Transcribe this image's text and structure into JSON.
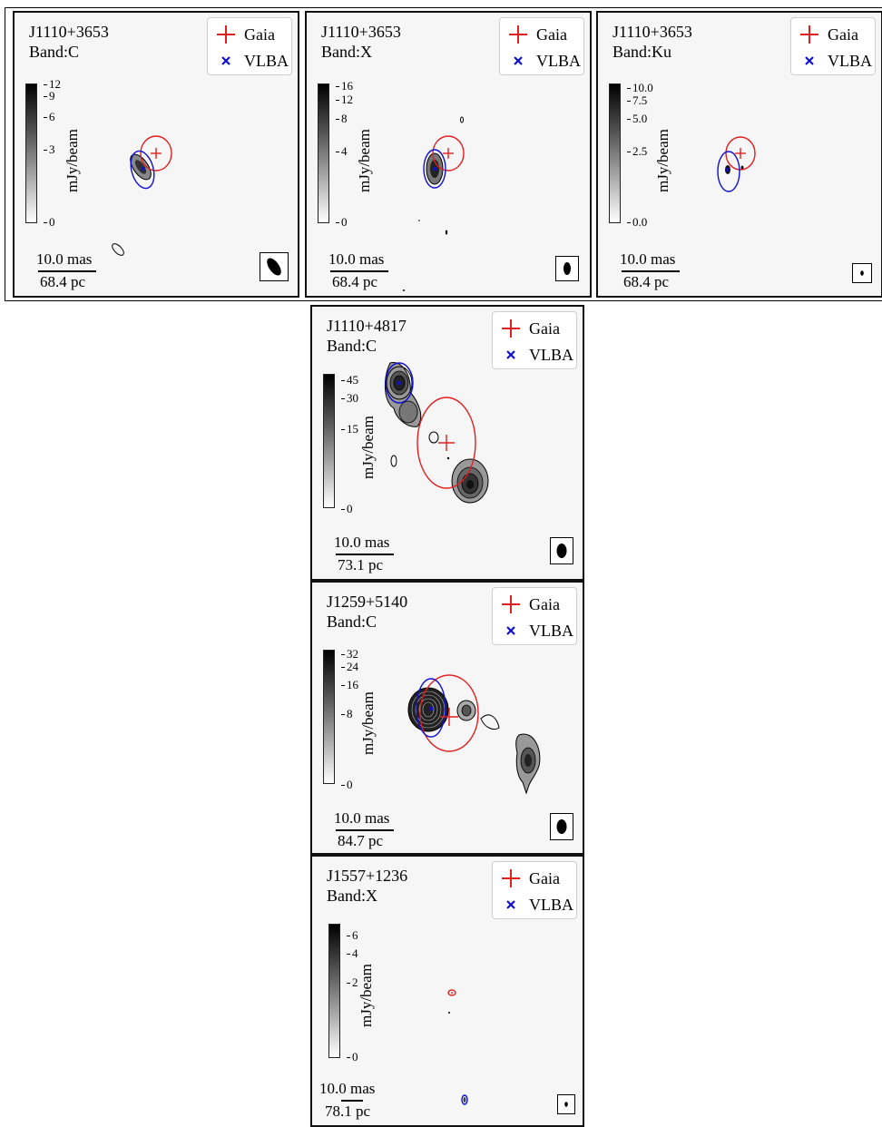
{
  "legend": {
    "gaia_label": "Gaia",
    "vlba_label": "VLBA",
    "gaia_color": "#e02020",
    "vlba_color": "#1010d0"
  },
  "colorbar_unit": "mJy/beam",
  "scalebar_mas": "10.0 mas",
  "panels": [
    {
      "source": "J1110+3653",
      "band": "Band:C",
      "ticks": [
        "12",
        "9",
        "6",
        "3",
        "0"
      ],
      "scale_pc": "68.4 pc"
    },
    {
      "source": "J1110+3653",
      "band": "Band:X",
      "ticks": [
        "16",
        "12",
        "8",
        "4",
        "0"
      ],
      "scale_pc": "68.4 pc"
    },
    {
      "source": "J1110+3653",
      "band": "Band:Ku",
      "ticks": [
        "10.0",
        "7.5",
        "5.0",
        "2.5",
        "0.0"
      ],
      "scale_pc": "68.4 pc"
    },
    {
      "source": "J1110+4817",
      "band": "Band:C",
      "ticks": [
        "45",
        "30",
        "15",
        "0"
      ],
      "scale_pc": "73.1 pc"
    },
    {
      "source": "J1259+5140",
      "band": "Band:C",
      "ticks": [
        "32",
        "24",
        "16",
        "8",
        "0"
      ],
      "scale_pc": "84.7 pc"
    },
    {
      "source": "J1557+1236",
      "band": "Band:X",
      "ticks": [
        "6",
        "4",
        "2",
        "0"
      ],
      "scale_pc": "78.1 pc"
    }
  ]
}
